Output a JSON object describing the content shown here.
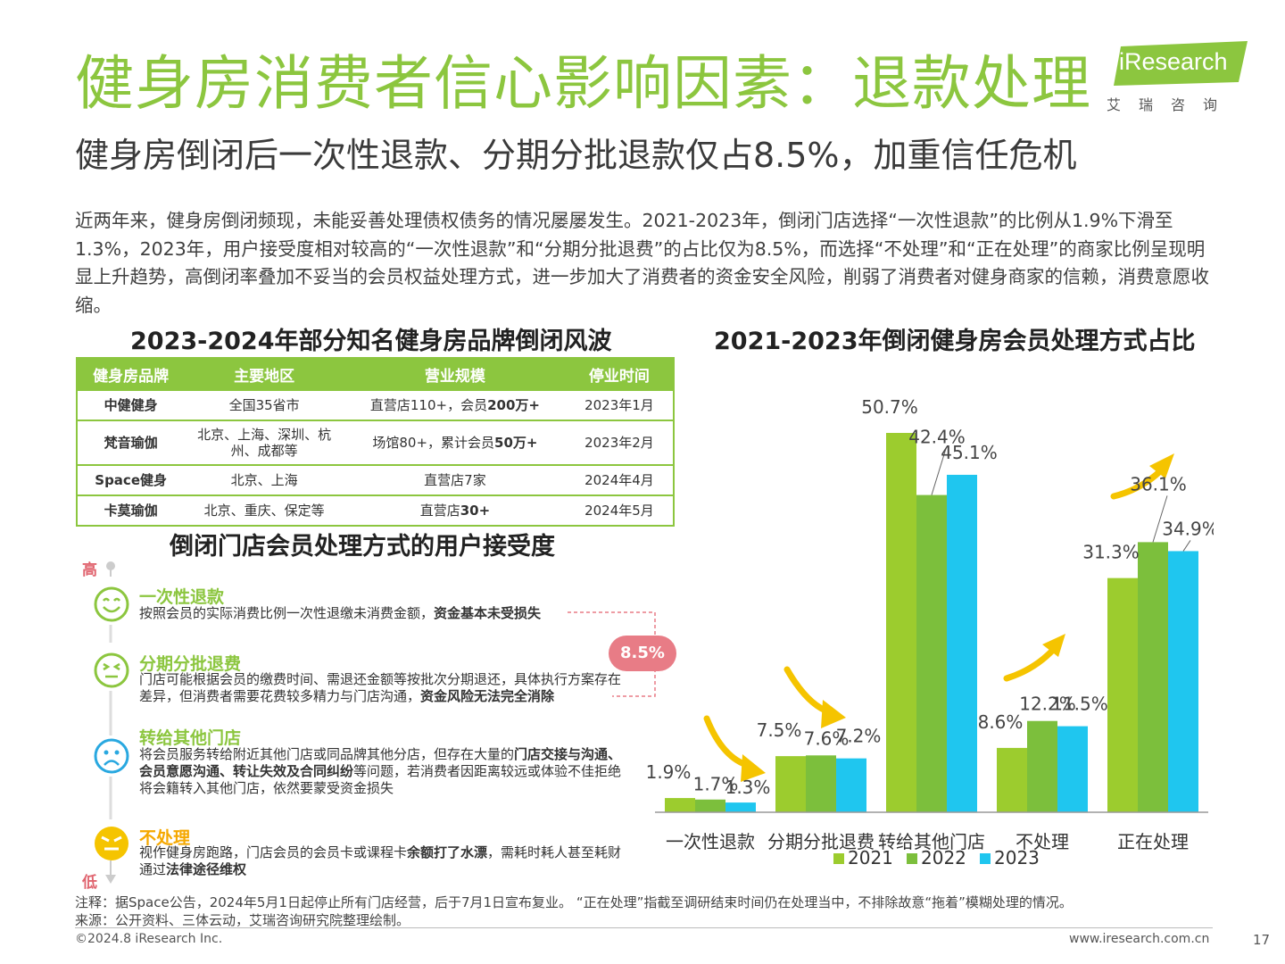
{
  "header": {
    "title": "健身房消费者信心影响因素：退款处理",
    "subtitle": "健身房倒闭后一次性退款、分期分批退款仅占8.5%，加重信任危机"
  },
  "logo": {
    "brand": "iResearch",
    "cn": "艾瑞咨询"
  },
  "intro": "近两年来，健身房倒闭频现，未能妥善处理债权债务的情况屡屡发生。2021-2023年，倒闭门店选择“一次性退款”的比例从1.9%下滑至1.3%，2023年，用户接受度相对较高的“一次性退款”和“分期分批退费”的占比仅为8.5%，而选择“不处理”和“正在处理”的商家比例呈现明显上升趋势，高倒闭率叠加不妥当的会员权益处理方式，进一步加大了消费者的资金安全风险，削弱了消费者对健身商家的信赖，消费意愿收缩。",
  "table": {
    "title": "2023-2024年部分知名健身房品牌倒闭风波",
    "headers": [
      "健身房品牌",
      "主要地区",
      "营业规模",
      "停业时间"
    ],
    "rows": [
      {
        "brand": "中健健身",
        "region": "全国35省市",
        "scale_pre": "直营店110+，会员",
        "scale_bold": "200万+",
        "date": "2023年1月"
      },
      {
        "brand": "梵音瑜伽",
        "region": "北京、上海、深圳、杭州、成都等",
        "scale_pre": "场馆80+，累计会员",
        "scale_bold": "50万+",
        "date": "2023年2月"
      },
      {
        "brand": "Space健身",
        "region": "北京、上海",
        "scale_pre": "直营店7家",
        "scale_bold": "",
        "date": "2024年4月"
      },
      {
        "brand": "卡莫瑜伽",
        "region": "北京、重庆、保定等",
        "scale_pre": "直营店",
        "scale_bold": "30+",
        "date": "2024年5月"
      }
    ]
  },
  "acceptance": {
    "title": "倒闭门店会员处理方式的用户接受度",
    "high": "高",
    "low": "低",
    "bubble": "8.5%",
    "items": [
      {
        "title": "一次性退款",
        "desc_pre": "按照会员的实际消费比例一次性退缴未消费金额，",
        "desc_bold": "资金基本未受损失",
        "desc_post": "",
        "face": "smile-face-icon",
        "color": "#8cc63f"
      },
      {
        "title": "分期分批退费",
        "desc_pre": "门店可能根据会员的缴费时间、需退还金额等按批次分期退还，具体执行方案存在差异，但消费者需要花费较多精力与门店沟通，",
        "desc_bold": "资金风险无法完全消除",
        "desc_post": "",
        "face": "neutral-face-icon",
        "color": "#8cc63f"
      },
      {
        "title": "转给其他门店",
        "desc_pre": "将会员服务转给附近其他门店或同品牌其他分店，但存在大量的",
        "desc_bold": "门店交接与沟通、会员意愿沟通、转让失效及合同纠纷",
        "desc_post": "等问题，若消费者因距离较远或体验不佳拒绝将会籍转入其他门店，依然要蒙受资金损失",
        "face": "sad-face-icon",
        "color": "#29a8e0"
      },
      {
        "title": "不处理",
        "desc_pre": "视作健身房跑路，门店会员的会员卡或课程卡",
        "desc_bold": "余额打了水漂",
        "desc_post": "，需耗时耗人甚至耗财通过",
        "desc_bold2": "法律途径维权",
        "face": "angry-face-icon",
        "color": "#f5c400"
      }
    ]
  },
  "chart_data": {
    "type": "bar",
    "title": "2021-2023年倒闭健身房会员处理方式占比",
    "categories": [
      "一次性退款",
      "分期分批退费",
      "转给其他门店",
      "不处理",
      "正在处理"
    ],
    "series": [
      {
        "name": "2021",
        "color": "#9ccc2e",
        "values": [
          1.9,
          7.5,
          50.7,
          8.6,
          31.3
        ],
        "labels": [
          "1.9%",
          "7.5%",
          "50.7%",
          "8.6%",
          "31.3%"
        ]
      },
      {
        "name": "2022",
        "color": "#7cbf3c",
        "values": [
          1.7,
          7.6,
          42.4,
          12.2,
          36.1
        ],
        "labels": [
          "1.7%",
          "7.6%",
          "42.4%",
          "12.2%",
          "36.1%"
        ]
      },
      {
        "name": "2023",
        "color": "#1fc6ef",
        "values": [
          1.3,
          7.2,
          45.1,
          11.5,
          34.9
        ],
        "labels": [
          "1.3%",
          "7.2%",
          "45.1%",
          "11.5%",
          "34.9%"
        ]
      }
    ],
    "ylim": [
      0,
      50.7
    ],
    "legend": "bottom",
    "arrow_color": "#f5c400"
  },
  "footer": {
    "note": "注释：据Space公告，2024年5月1日起停止所有门店经营，后于7月1日宣布复业。 “正在处理”指截至调研结束时间仍在处理当中，不排除故意“拖着”模糊处理的情况。",
    "source": "来源：公开资料、三体云动，艾瑞咨询研究院整理绘制。",
    "copyright": "©2024.8 iResearch Inc.",
    "website": "www.iresearch.com.cn",
    "page": "17"
  }
}
